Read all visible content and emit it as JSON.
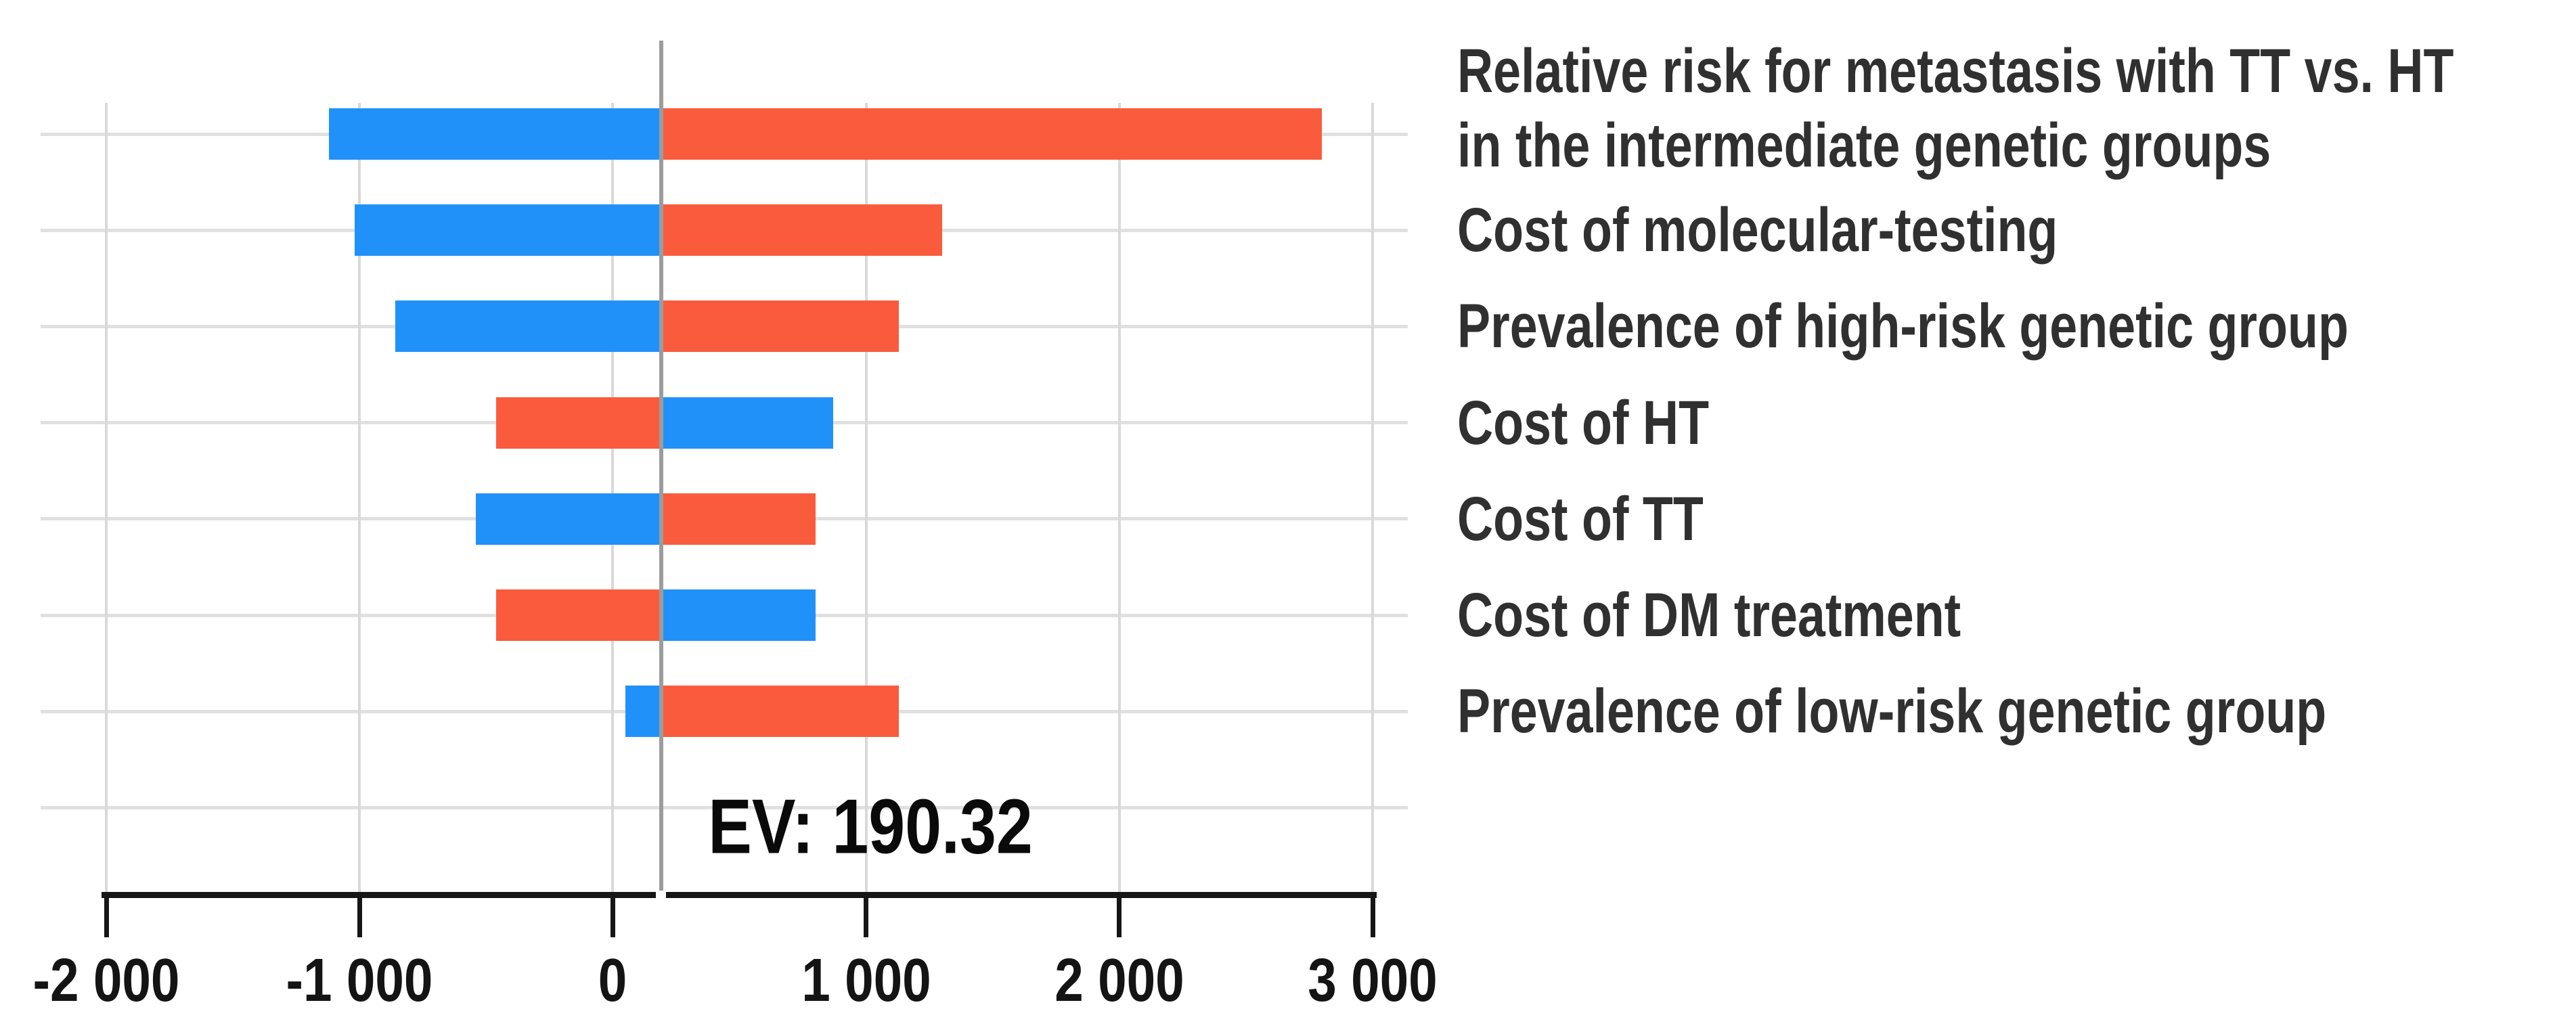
{
  "chart_data": {
    "type": "bar",
    "subtype": "tornado",
    "title": "",
    "ev": 190.32,
    "ev_label": "EV: 190.32",
    "x_axis": {
      "min": -2000,
      "max": 3000,
      "ticks": [
        -2000,
        -1000,
        0,
        1000,
        2000,
        3000
      ],
      "tick_labels": [
        "-2 000",
        "-1 000",
        "0",
        "1 000",
        "2 000",
        "3 000"
      ],
      "grid": true
    },
    "colors": {
      "low_value_bar": "#2191fa",
      "high_value_bar": "#fa5b3d",
      "ev_line": "#9c9c9c",
      "gridline": "#e0e0e0",
      "axis": "#161616"
    },
    "legend_position": "none",
    "bars": [
      {
        "label": "Relative risk for metastasis with TT vs. HT in the intermediate genetic groups",
        "label_lines": [
          "Relative risk for metastasis with TT vs. HT",
          "in the intermediate genetic groups"
        ],
        "min": -1120,
        "max": 2800,
        "red_side": "right"
      },
      {
        "label": "Cost of molecular-testing",
        "label_lines": [
          "Cost of molecular-testing"
        ],
        "min": -1020,
        "max": 1300,
        "red_side": "right"
      },
      {
        "label": "Prevalence of high-risk genetic group",
        "label_lines": [
          "Prevalence of high-risk genetic group"
        ],
        "min": -860,
        "max": 1130,
        "red_side": "right"
      },
      {
        "label": "Cost of HT",
        "label_lines": [
          "Cost of HT"
        ],
        "min": -460,
        "max": 870,
        "red_side": "left"
      },
      {
        "label": "Cost of TT",
        "label_lines": [
          "Cost of TT"
        ],
        "min": -540,
        "max": 800,
        "red_side": "right"
      },
      {
        "label": "Cost of DM treatment",
        "label_lines": [
          "Cost of DM treatment"
        ],
        "min": -460,
        "max": 800,
        "red_side": "left"
      },
      {
        "label": "Prevalence of low-risk genetic group",
        "label_lines": [
          "Prevalence of low-risk genetic group"
        ],
        "min": 50,
        "max": 1130,
        "red_side": "right"
      }
    ]
  }
}
